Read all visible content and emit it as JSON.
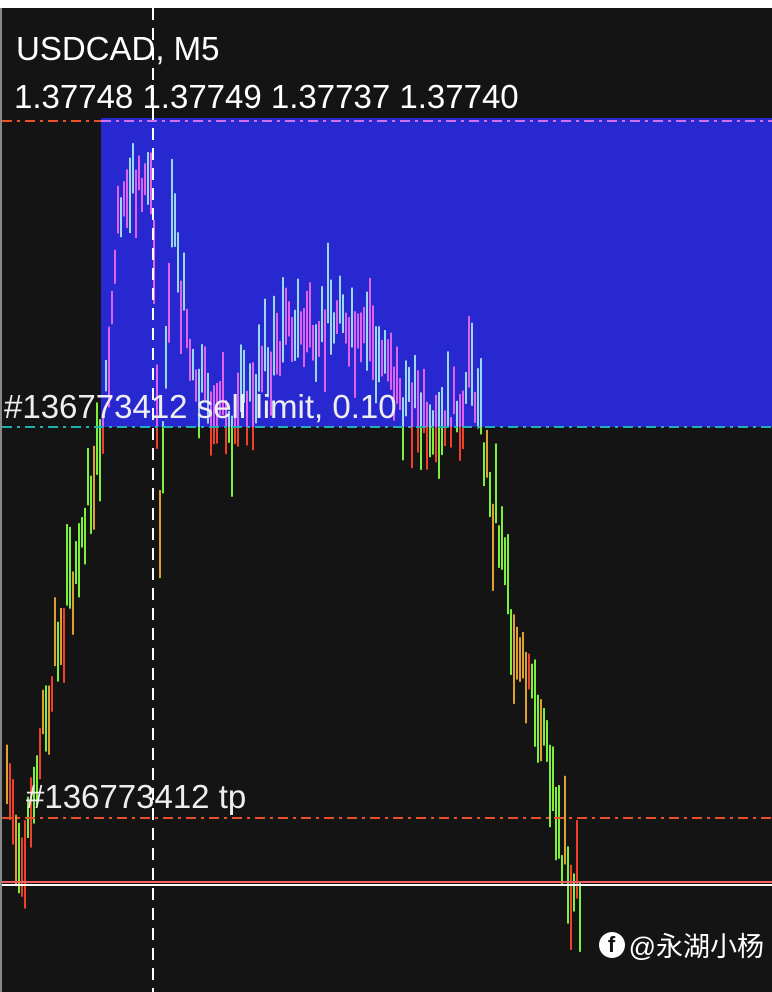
{
  "chart": {
    "symbol_timeframe": "USDCAD, M5",
    "ohlc": "1.37748 1.37749 1.37737 1.37740",
    "order_label": "#136773412 sell limit, 0.10",
    "tp_label": "#136773412 tp",
    "colors": {
      "background": "#141414",
      "zone": "#2828d0",
      "bull_bar": "#7cf03a",
      "bear_bar": "#f0402a",
      "zone_bar_up": "#9ad8f0",
      "zone_bar_down": "#e060f0",
      "tp_line": "#e8502a",
      "order_line": "#20b0b0",
      "bid_line": "#f06060"
    }
  },
  "watermark": {
    "icon": "facebook-icon",
    "text": "@永湖小杨"
  }
}
